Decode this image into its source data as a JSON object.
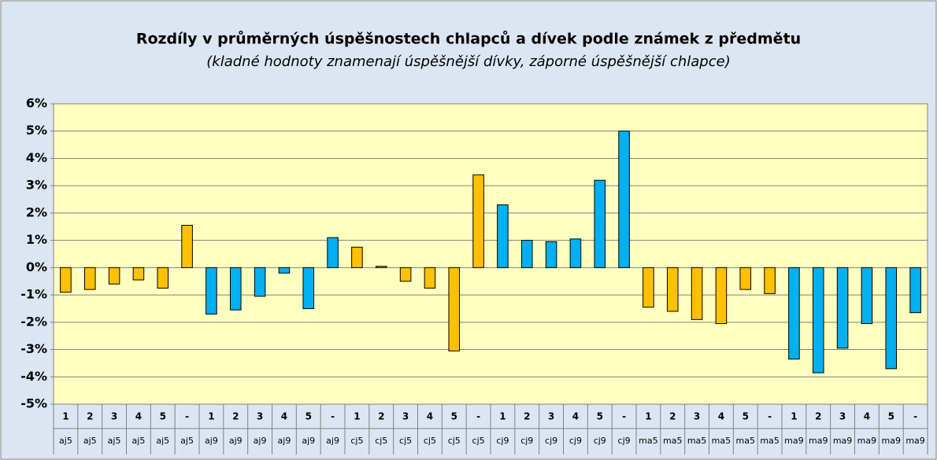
{
  "chart_data": {
    "type": "bar",
    "title": "Rozdíly v průměrných úspěšnostech chlapců a dívek podle známek z předmětu",
    "subtitle": "(kladné hodnoty znamenají úspěšnější dívky, záporné úspěšnější chlapce)",
    "categories": [
      "1",
      "2",
      "3",
      "4",
      "5",
      "-",
      "1",
      "2",
      "3",
      "4",
      "5",
      "-",
      "1",
      "2",
      "3",
      "4",
      "5",
      "-",
      "1",
      "2",
      "3",
      "4",
      "5",
      "-",
      "1",
      "2",
      "3",
      "4",
      "5",
      "-",
      "1",
      "2",
      "3",
      "4",
      "5",
      "-"
    ],
    "group_labels": [
      "aj5",
      "aj5",
      "aj5",
      "aj5",
      "aj5",
      "aj5",
      "aj9",
      "aj9",
      "aj9",
      "aj9",
      "aj9",
      "aj9",
      "cj5",
      "cj5",
      "cj5",
      "cj5",
      "cj5",
      "cj5",
      "cj9",
      "cj9",
      "cj9",
      "cj9",
      "cj9",
      "cj9",
      "ma5",
      "ma5",
      "ma5",
      "ma5",
      "ma5",
      "ma5",
      "ma9",
      "ma9",
      "ma9",
      "ma9",
      "ma9",
      "ma9"
    ],
    "values": [
      -0.9,
      -0.8,
      -0.6,
      -0.45,
      -0.75,
      1.55,
      -1.7,
      -1.55,
      -1.05,
      -0.2,
      -1.5,
      1.1,
      0.75,
      0.05,
      -0.5,
      -0.75,
      -3.05,
      3.4,
      2.3,
      1.0,
      0.95,
      1.05,
      3.2,
      5.0,
      -1.45,
      -1.6,
      -1.9,
      -2.05,
      -0.8,
      -0.95,
      -3.35,
      -3.85,
      -2.95,
      -2.05,
      -3.7,
      -1.65
    ],
    "colors": [
      "#ffc000",
      "#ffc000",
      "#ffc000",
      "#ffc000",
      "#ffc000",
      "#ffc000",
      "#00b0f0",
      "#00b0f0",
      "#00b0f0",
      "#00b0f0",
      "#00b0f0",
      "#00b0f0",
      "#ffc000",
      "#ffc000",
      "#ffc000",
      "#ffc000",
      "#ffc000",
      "#ffc000",
      "#00b0f0",
      "#00b0f0",
      "#00b0f0",
      "#00b0f0",
      "#00b0f0",
      "#00b0f0",
      "#ffc000",
      "#ffc000",
      "#ffc000",
      "#ffc000",
      "#ffc000",
      "#ffc000",
      "#00b0f0",
      "#00b0f0",
      "#00b0f0",
      "#00b0f0",
      "#00b0f0",
      "#00b0f0"
    ],
    "ylim": [
      -5,
      6
    ],
    "yticks": [
      {
        "value": -5,
        "label": "-5%"
      },
      {
        "value": -4,
        "label": "-4%"
      },
      {
        "value": -3,
        "label": "-3%"
      },
      {
        "value": -2,
        "label": "-2%"
      },
      {
        "value": -1,
        "label": "-1%"
      },
      {
        "value": 0,
        "label": "0%"
      },
      {
        "value": 1,
        "label": "1%"
      },
      {
        "value": 2,
        "label": "2%"
      },
      {
        "value": 3,
        "label": "3%"
      },
      {
        "value": 4,
        "label": "4%"
      },
      {
        "value": 5,
        "label": "5%"
      },
      {
        "value": 6,
        "label": "6%"
      }
    ],
    "grid": true
  }
}
